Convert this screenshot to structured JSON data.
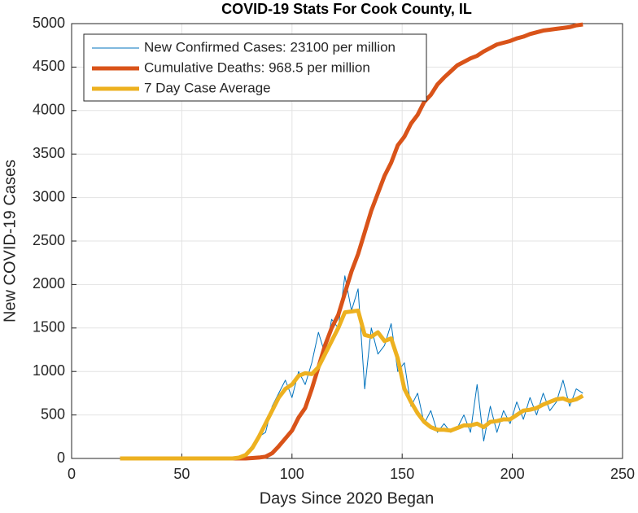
{
  "chart_data": {
    "type": "line",
    "title": "COVID-19 Stats For Cook County, IL",
    "x_label": "Days Since 2020 Began",
    "y_label": "New COVID-19 Cases",
    "xlim": [
      0,
      250
    ],
    "xticks": [
      0,
      50,
      100,
      150,
      200,
      250
    ],
    "ylim": [
      0,
      5000
    ],
    "yticks": [
      0,
      500,
      1000,
      1500,
      2000,
      2500,
      3000,
      3500,
      4000,
      4500,
      5000
    ],
    "grid": true,
    "legend": "upper left",
    "x": [
      22,
      25,
      28,
      31,
      34,
      37,
      40,
      43,
      46,
      49,
      52,
      55,
      58,
      61,
      64,
      67,
      70,
      73,
      76,
      79,
      82,
      85,
      88,
      91,
      94,
      97,
      100,
      103,
      106,
      109,
      112,
      115,
      118,
      121,
      124,
      127,
      130,
      133,
      136,
      139,
      142,
      145,
      148,
      151,
      154,
      157,
      160,
      163,
      166,
      169,
      172,
      175,
      178,
      181,
      184,
      187,
      190,
      193,
      196,
      199,
      202,
      205,
      208,
      211,
      214,
      217,
      220,
      223,
      226,
      229,
      232
    ],
    "series": [
      {
        "name": "New Confirmed Cases: 23100 per million",
        "color": "#0072bd",
        "linewidth": 1,
        "values": [
          0,
          0,
          0,
          0,
          0,
          0,
          0,
          0,
          0,
          0,
          0,
          0,
          0,
          0,
          0,
          0,
          0,
          0,
          20,
          60,
          150,
          250,
          300,
          600,
          750,
          900,
          700,
          1000,
          850,
          1100,
          1450,
          1200,
          1600,
          1500,
          2100,
          1700,
          1950,
          800,
          1500,
          1200,
          1300,
          1550,
          1000,
          1100,
          600,
          750,
          400,
          550,
          300,
          400,
          300,
          350,
          500,
          300,
          850,
          200,
          600,
          300,
          550,
          400,
          650,
          450,
          700,
          500,
          750,
          550,
          650,
          900,
          600,
          800,
          750
        ]
      },
      {
        "name": "Cumulative Deaths: 968.5 per million",
        "color": "#d95319",
        "linewidth": 5,
        "values": [
          0,
          0,
          0,
          0,
          0,
          0,
          0,
          0,
          0,
          0,
          0,
          0,
          0,
          0,
          0,
          0,
          0,
          0,
          0,
          0,
          5,
          10,
          20,
          60,
          140,
          230,
          320,
          470,
          580,
          800,
          1050,
          1300,
          1500,
          1650,
          1900,
          2150,
          2350,
          2600,
          2850,
          3050,
          3250,
          3400,
          3600,
          3700,
          3850,
          3950,
          4100,
          4180,
          4300,
          4380,
          4450,
          4520,
          4560,
          4600,
          4630,
          4680,
          4720,
          4760,
          4780,
          4800,
          4830,
          4850,
          4880,
          4900,
          4920,
          4930,
          4940,
          4950,
          4960,
          4980,
          4990
        ]
      },
      {
        "name": "7 Day Case Average",
        "color": "#edb120",
        "linewidth": 5,
        "values": [
          0,
          0,
          0,
          0,
          0,
          0,
          0,
          0,
          0,
          0,
          0,
          0,
          0,
          0,
          0,
          0,
          0,
          0,
          10,
          40,
          120,
          250,
          400,
          550,
          700,
          800,
          850,
          950,
          980,
          970,
          1050,
          1200,
          1350,
          1500,
          1680,
          1690,
          1700,
          1420,
          1400,
          1450,
          1350,
          1380,
          1150,
          800,
          650,
          520,
          420,
          360,
          330,
          330,
          320,
          350,
          380,
          380,
          400,
          360,
          420,
          430,
          450,
          450,
          500,
          550,
          560,
          580,
          620,
          650,
          680,
          690,
          660,
          680,
          720
        ]
      }
    ]
  }
}
